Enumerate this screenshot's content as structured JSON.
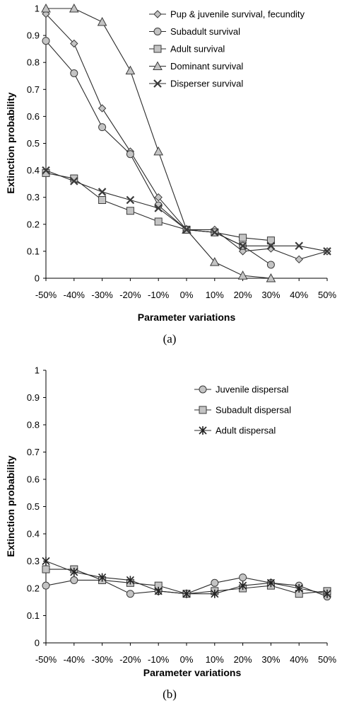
{
  "figure": {
    "captions": [
      "(a)",
      "(b)"
    ]
  },
  "chart_data": [
    {
      "type": "line",
      "categories": [
        "-50%",
        "-40%",
        "-30%",
        "-20%",
        "-10%",
        "0%",
        "10%",
        "20%",
        "30%",
        "40%",
        "50%"
      ],
      "ylabel": "Extinction probability",
      "xlabel": "Parameter variations",
      "ylim": [
        0,
        1
      ],
      "yticks": [
        "0",
        "0.1",
        "0.2",
        "0.3",
        "0.4",
        "0.5",
        "0.6",
        "0.7",
        "0.8",
        "0.9",
        "1"
      ],
      "grid": false,
      "legend_position": "top-right",
      "caption": "(a)",
      "series": [
        {
          "name": "Pup & juvenile survival, fecundity",
          "marker": "diamond",
          "values": [
            0.98,
            0.87,
            0.63,
            0.47,
            0.3,
            0.18,
            0.18,
            0.1,
            0.11,
            0.07,
            0.1
          ]
        },
        {
          "name": "Subadult survival",
          "marker": "circle",
          "values": [
            0.88,
            0.76,
            0.56,
            0.46,
            0.27,
            0.18,
            0.17,
            0.12,
            0.05,
            null,
            null
          ]
        },
        {
          "name": "Adult survival",
          "marker": "square",
          "values": [
            0.39,
            0.37,
            0.29,
            0.25,
            0.21,
            0.18,
            0.17,
            0.15,
            0.14,
            null,
            null
          ]
        },
        {
          "name": "Dominant survival",
          "marker": "triangle",
          "values": [
            1.0,
            1.0,
            0.95,
            0.77,
            0.47,
            0.18,
            0.06,
            0.01,
            0.0,
            null,
            null
          ]
        },
        {
          "name": "Disperser survival",
          "marker": "x",
          "values": [
            0.4,
            0.36,
            0.32,
            0.29,
            0.26,
            0.18,
            0.17,
            0.12,
            0.12,
            0.12,
            0.1
          ]
        }
      ]
    },
    {
      "type": "line",
      "categories": [
        "-50%",
        "-40%",
        "-30%",
        "-20%",
        "-10%",
        "0%",
        "10%",
        "20%",
        "30%",
        "40%",
        "50%"
      ],
      "ylabel": "Extinction probability",
      "xlabel": "Parameter variations",
      "ylim": [
        0,
        1
      ],
      "yticks": [
        "0",
        "0.1",
        "0.2",
        "0.3",
        "0.4",
        "0.5",
        "0.6",
        "0.7",
        "0.8",
        "0.9",
        "1"
      ],
      "grid": false,
      "legend_position": "top-right",
      "caption": "(b)",
      "series": [
        {
          "name": "Juvenile dispersal",
          "marker": "circle",
          "values": [
            0.21,
            0.23,
            0.23,
            0.18,
            0.19,
            0.18,
            0.22,
            0.24,
            0.22,
            0.21,
            0.17
          ]
        },
        {
          "name": "Subadult dispersal",
          "marker": "square",
          "values": [
            0.27,
            0.27,
            0.23,
            0.22,
            0.21,
            0.18,
            0.19,
            0.2,
            0.21,
            0.18,
            0.19
          ]
        },
        {
          "name": "Adult dispersal",
          "marker": "star",
          "values": [
            0.3,
            0.26,
            0.24,
            0.23,
            0.19,
            0.18,
            0.18,
            0.21,
            0.22,
            0.2,
            0.18
          ]
        }
      ]
    }
  ]
}
